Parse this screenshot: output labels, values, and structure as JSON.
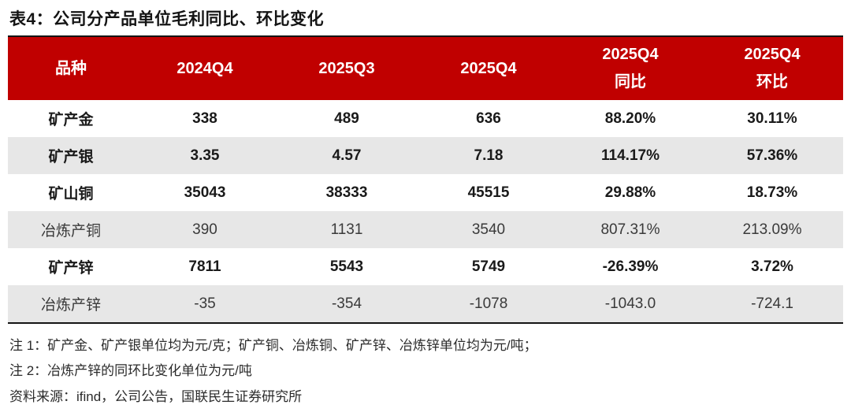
{
  "title": "表4：公司分产品单位毛利同比、环比变化",
  "colors": {
    "header_bg": "#C00000",
    "header_text": "#FFFFFF",
    "shaded_row_bg": "#E7E7E7",
    "border": "#141414"
  },
  "table": {
    "columns": [
      {
        "line1": "品种",
        "line2": ""
      },
      {
        "line1": "2024Q4",
        "line2": ""
      },
      {
        "line1": "2025Q3",
        "line2": ""
      },
      {
        "line1": "2025Q4",
        "line2": ""
      },
      {
        "line1": "2025Q4",
        "line2": "同比"
      },
      {
        "line1": "2025Q4",
        "line2": "环比"
      }
    ],
    "rows": [
      {
        "name": "矿产金",
        "values": [
          "338",
          "489",
          "636",
          "88.20%",
          "30.11%"
        ]
      },
      {
        "name": "矿产银",
        "values": [
          "3.35",
          "4.57",
          "7.18",
          "114.17%",
          "57.36%"
        ]
      },
      {
        "name": "矿山铜",
        "values": [
          "35043",
          "38333",
          "45515",
          "29.88%",
          "18.73%"
        ]
      },
      {
        "name": "冶炼产铜",
        "values": [
          "390",
          "1131",
          "3540",
          "807.31%",
          "213.09%"
        ]
      },
      {
        "name": "矿产锌",
        "values": [
          "7811",
          "5543",
          "5749",
          "-26.39%",
          "3.72%"
        ]
      },
      {
        "name": "冶炼产锌",
        "values": [
          "-35",
          "-354",
          "-1078",
          "-1043.0",
          "-724.1"
        ]
      }
    ]
  },
  "notes": [
    "注 1：矿产金、矿产银单位均为元/克；矿产铜、冶炼铜、矿产锌、冶炼锌单位均为元/吨；",
    "注 2：冶炼产锌的同环比变化单位为元/吨",
    "资料来源：ifind，公司公告，国联民生证券研究所"
  ]
}
